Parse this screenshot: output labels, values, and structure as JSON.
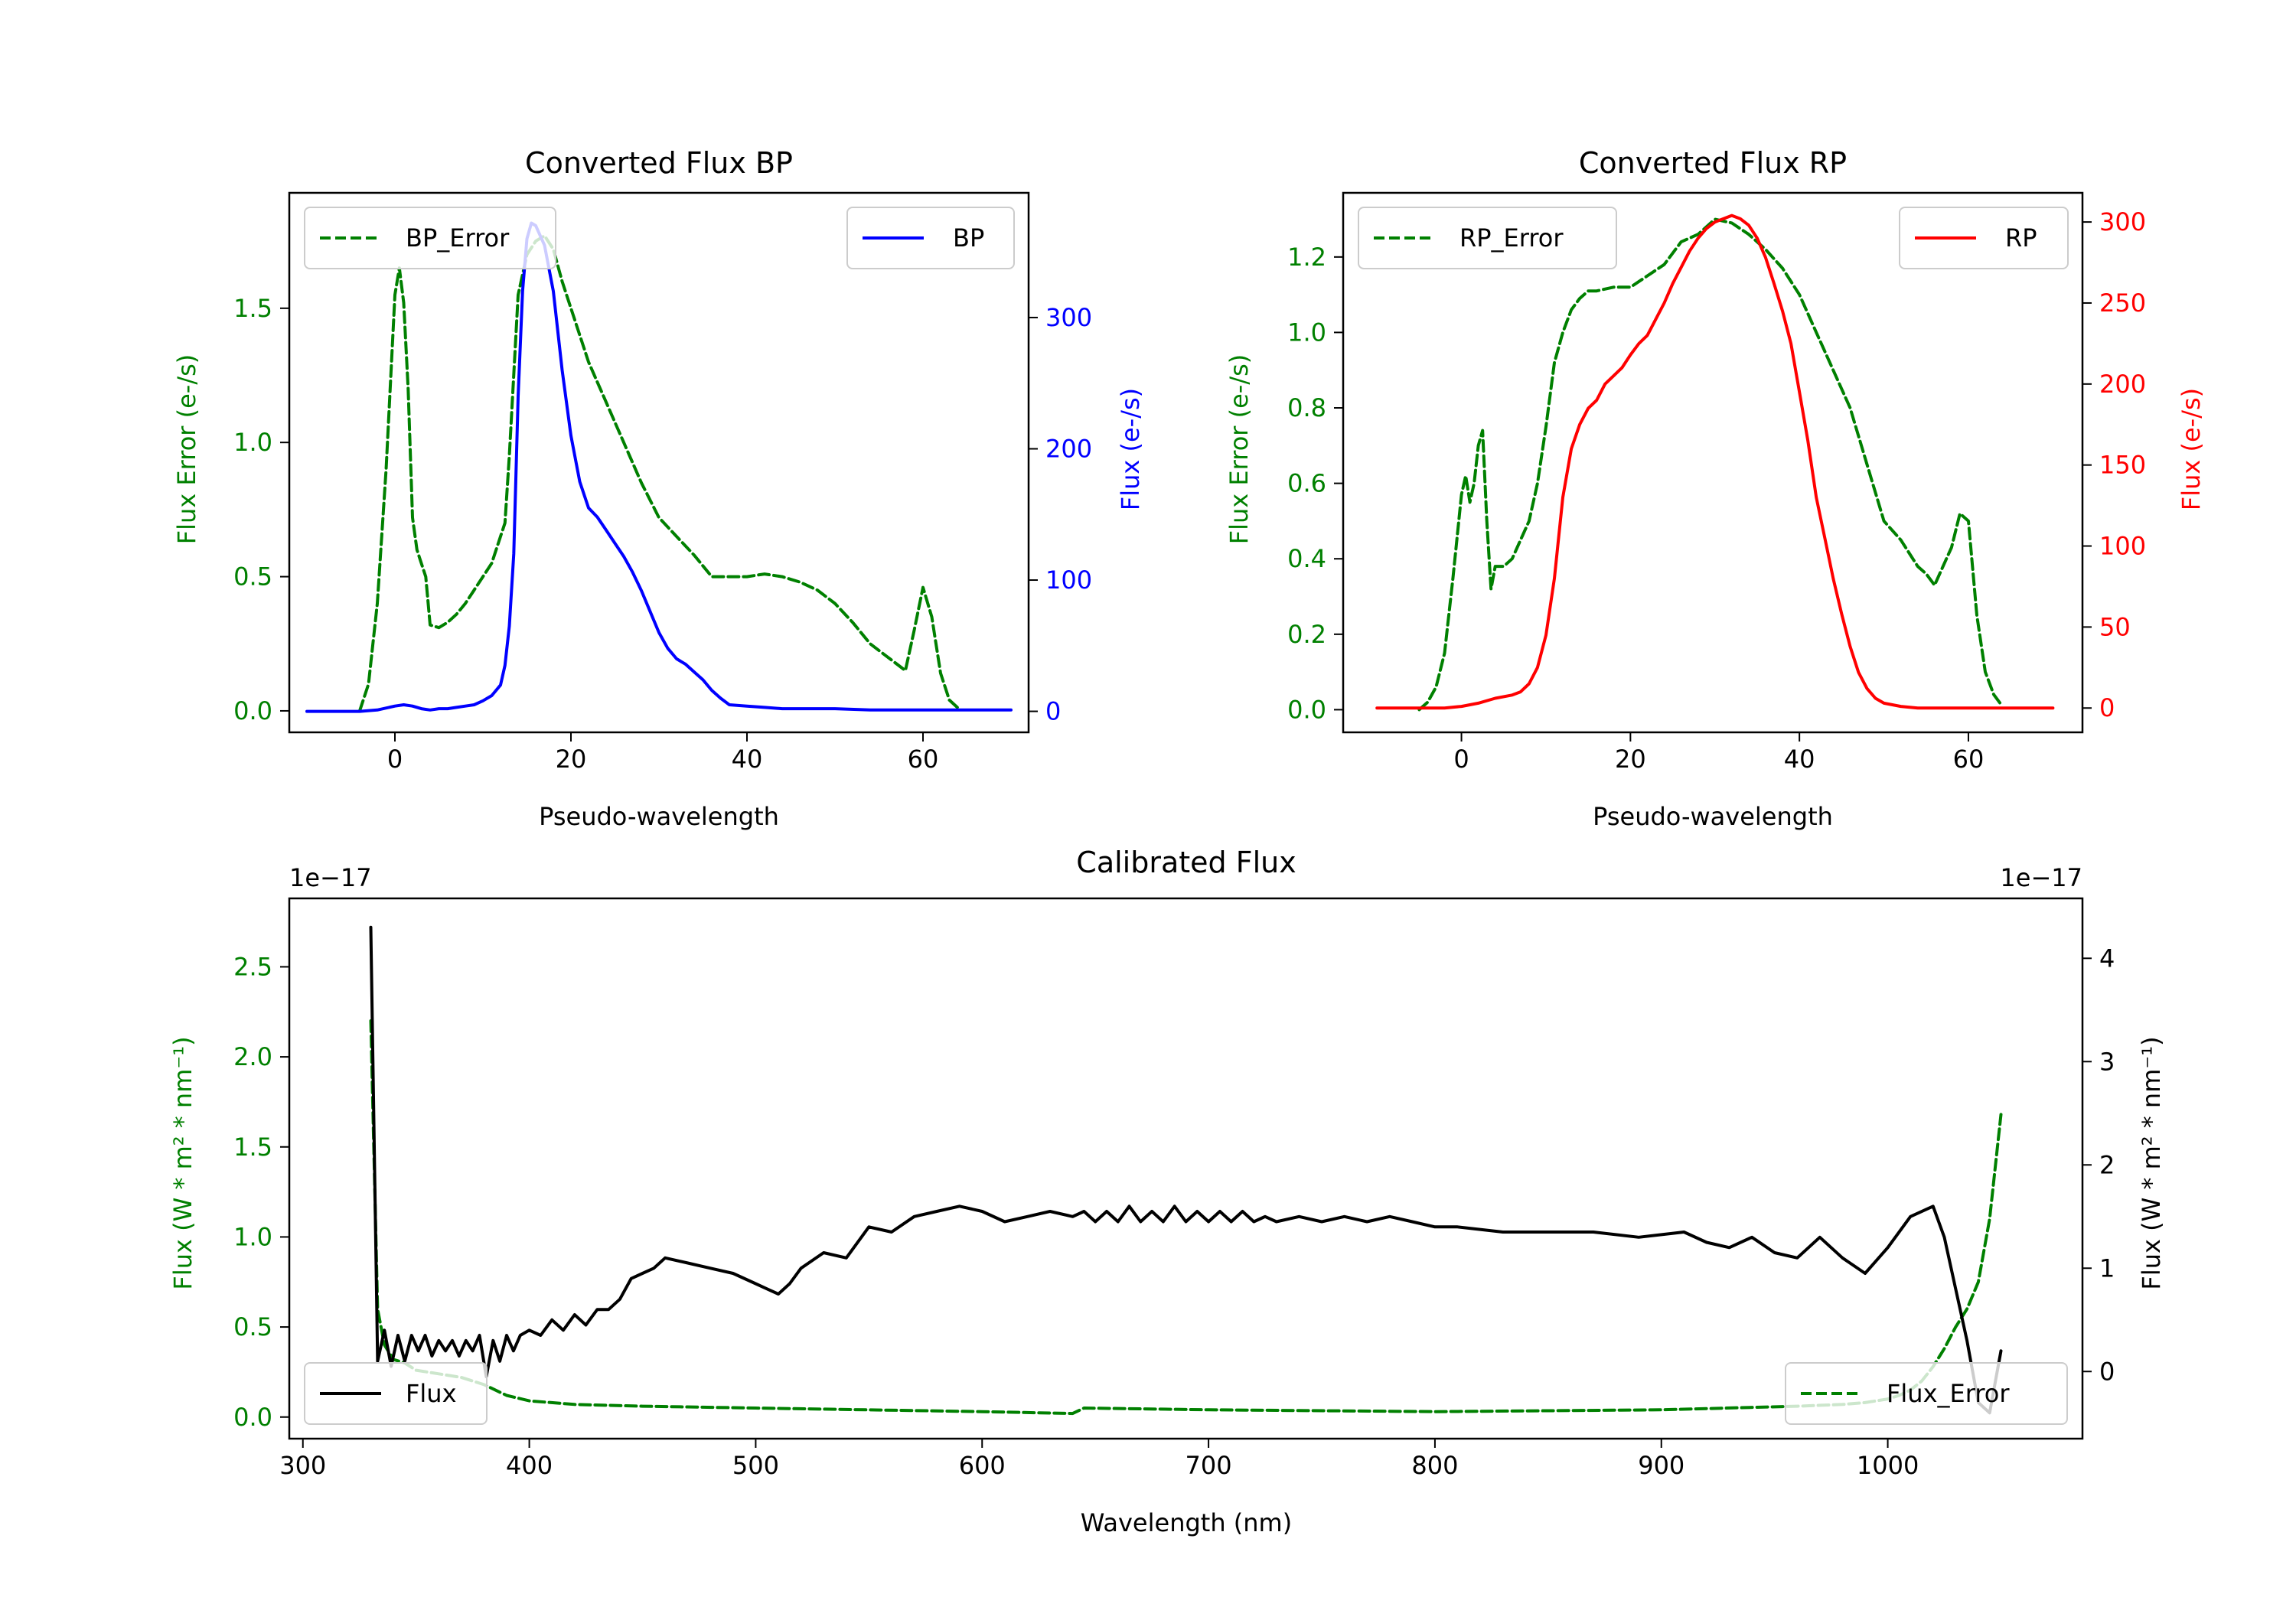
{
  "figure": {
    "colors": {
      "green": "#008000",
      "blue": "#0000ff",
      "red": "#ff0000",
      "black": "#000000"
    }
  },
  "chart_data": [
    {
      "id": "bp",
      "type": "line",
      "title": "Converted Flux BP",
      "xlabel": "Pseudo-wavelength",
      "ylabel_left": "Flux Error (e-/s)",
      "ylabel_right": "Flux (e-/s)",
      "xlim": [
        -12,
        72
      ],
      "ylim_left": [
        -0.08,
        1.93
      ],
      "ylim_right": [
        -16,
        395
      ],
      "x_ticks": [
        0,
        20,
        40,
        60
      ],
      "left_ticks": [
        "0.0",
        "0.5",
        "1.0",
        "1.5"
      ],
      "left_tick_values": [
        0,
        0.5,
        1.0,
        1.5
      ],
      "right_ticks": [
        "0",
        "100",
        "200",
        "300"
      ],
      "right_tick_values": [
        0,
        100,
        200,
        300
      ],
      "legend_left": "BP_Error",
      "legend_right": "BP",
      "right_axis_color": "#0000ff",
      "series": [
        {
          "name": "BP_Error",
          "axis": "left",
          "color": "#008000",
          "dashed": true,
          "x": [
            -4,
            -3,
            -2,
            -1,
            0,
            0.5,
            1,
            1.5,
            2,
            2.5,
            3,
            3.5,
            4,
            5,
            6,
            7,
            8,
            9,
            10,
            11,
            12,
            12.5,
            13,
            14,
            15,
            16,
            17,
            18,
            19,
            20,
            22,
            24,
            26,
            28,
            30,
            32,
            34,
            36,
            38,
            40,
            42,
            44,
            46,
            48,
            50,
            52,
            54,
            56,
            58,
            59,
            60,
            61,
            62,
            63,
            64
          ],
          "values": [
            0,
            0.1,
            0.4,
            0.9,
            1.55,
            1.65,
            1.52,
            1.2,
            0.72,
            0.6,
            0.55,
            0.5,
            0.32,
            0.31,
            0.33,
            0.36,
            0.4,
            0.45,
            0.5,
            0.55,
            0.65,
            0.7,
            0.95,
            1.55,
            1.7,
            1.75,
            1.77,
            1.72,
            1.6,
            1.5,
            1.3,
            1.15,
            1.0,
            0.85,
            0.72,
            0.65,
            0.58,
            0.5,
            0.5,
            0.5,
            0.51,
            0.5,
            0.48,
            0.45,
            0.4,
            0.33,
            0.25,
            0.2,
            0.15,
            0.3,
            0.46,
            0.35,
            0.14,
            0.04,
            0.01
          ]
        },
        {
          "name": "BP",
          "axis": "right",
          "color": "#0000ff",
          "dashed": false,
          "x": [
            -10,
            -6,
            -4,
            -2,
            0,
            1,
            2,
            3,
            4,
            5,
            6,
            7,
            8,
            9,
            10,
            11,
            12,
            12.5,
            13,
            13.5,
            14,
            14.5,
            15,
            15.5,
            16,
            17,
            18,
            19,
            20,
            21,
            22,
            23,
            24,
            25,
            26,
            27,
            28,
            29,
            30,
            31,
            32,
            33,
            34,
            35,
            36,
            37,
            38,
            40,
            42,
            44,
            46,
            48,
            50,
            54,
            58,
            62,
            66,
            70
          ],
          "values": [
            0,
            0,
            0,
            1,
            4,
            5,
            4,
            2,
            1,
            2,
            2,
            3,
            4,
            5,
            8,
            12,
            20,
            35,
            65,
            120,
            240,
            320,
            360,
            372,
            370,
            355,
            320,
            260,
            210,
            175,
            155,
            148,
            138,
            128,
            118,
            106,
            92,
            76,
            60,
            48,
            40,
            36,
            30,
            24,
            16,
            10,
            5,
            4,
            3,
            2,
            2,
            2,
            2,
            1,
            1,
            1,
            1,
            1
          ]
        }
      ]
    },
    {
      "id": "rp",
      "type": "line",
      "title": "Converted Flux RP",
      "xlabel": "Pseudo-wavelength",
      "ylabel_left": "Flux Error (e-/s)",
      "ylabel_right": "Flux (e-/s)",
      "xlim": [
        -14,
        73.5
      ],
      "ylim_left": [
        -0.06,
        1.37
      ],
      "ylim_right": [
        -15,
        318
      ],
      "x_ticks": [
        0,
        20,
        40,
        60
      ],
      "left_ticks": [
        "0.0",
        "0.2",
        "0.4",
        "0.6",
        "0.8",
        "1.0",
        "1.2"
      ],
      "left_tick_values": [
        0,
        0.2,
        0.4,
        0.6,
        0.8,
        1.0,
        1.2
      ],
      "right_ticks": [
        "0",
        "50",
        "100",
        "150",
        "200",
        "250",
        "300"
      ],
      "right_tick_values": [
        0,
        50,
        100,
        150,
        200,
        250,
        300
      ],
      "legend_left": "RP_Error",
      "legend_right": "RP",
      "right_axis_color": "#ff0000",
      "series": [
        {
          "name": "RP_Error",
          "axis": "left",
          "color": "#008000",
          "dashed": true,
          "x": [
            -5,
            -4,
            -3,
            -2,
            -1,
            0,
            0.5,
            1,
            1.5,
            2,
            2.5,
            3,
            3.5,
            4,
            5,
            6,
            7,
            8,
            9,
            10,
            11,
            12,
            13,
            14,
            15,
            16,
            18,
            20,
            22,
            24,
            26,
            28,
            30,
            32,
            34,
            36,
            38,
            40,
            42,
            44,
            46,
            48,
            50,
            52,
            54,
            55,
            56,
            57,
            58,
            59,
            60,
            61,
            62,
            63,
            64
          ],
          "values": [
            0,
            0.02,
            0.06,
            0.15,
            0.35,
            0.57,
            0.62,
            0.55,
            0.6,
            0.7,
            0.74,
            0.5,
            0.32,
            0.38,
            0.38,
            0.4,
            0.45,
            0.5,
            0.6,
            0.75,
            0.92,
            1.0,
            1.06,
            1.09,
            1.11,
            1.11,
            1.12,
            1.12,
            1.15,
            1.18,
            1.24,
            1.26,
            1.3,
            1.29,
            1.26,
            1.22,
            1.17,
            1.1,
            1.0,
            0.9,
            0.8,
            0.65,
            0.5,
            0.45,
            0.38,
            0.36,
            0.33,
            0.38,
            0.43,
            0.52,
            0.5,
            0.25,
            0.1,
            0.04,
            0.01
          ]
        },
        {
          "name": "RP",
          "axis": "right",
          "color": "#ff0000",
          "dashed": false,
          "x": [
            -10,
            -2,
            0,
            2,
            4,
            6,
            7,
            8,
            9,
            10,
            11,
            12,
            13,
            14,
            15,
            16,
            17,
            18,
            19,
            20,
            21,
            22,
            23,
            24,
            25,
            26,
            27,
            28,
            29,
            30,
            31,
            32,
            33,
            34,
            35,
            36,
            37,
            38,
            39,
            40,
            41,
            42,
            43,
            44,
            45,
            46,
            47,
            48,
            49,
            50,
            51,
            52,
            54,
            56,
            58,
            62,
            66,
            70
          ],
          "values": [
            0,
            0,
            1,
            3,
            6,
            8,
            10,
            15,
            25,
            45,
            80,
            130,
            160,
            175,
            185,
            190,
            200,
            205,
            210,
            218,
            225,
            230,
            240,
            250,
            262,
            272,
            282,
            290,
            296,
            300,
            302,
            304,
            302,
            298,
            290,
            278,
            262,
            245,
            225,
            195,
            165,
            130,
            105,
            80,
            58,
            38,
            22,
            12,
            6,
            3,
            2,
            1,
            0,
            0,
            0,
            0,
            0,
            0
          ]
        }
      ]
    },
    {
      "id": "cal",
      "type": "line",
      "title": "Calibrated Flux",
      "xlabel": "Wavelength (nm)",
      "ylabel_left": "Flux (W * m² * nm⁻¹)",
      "ylabel_right": "Flux (W * m² * nm⁻¹)",
      "offset_left": "1e−17",
      "offset_right": "1e−17",
      "xlim": [
        294,
        1086
      ],
      "ylim_left": [
        -0.12,
        2.88
      ],
      "ylim_right": [
        -0.65,
        4.58
      ],
      "x_ticks": [
        300,
        400,
        500,
        600,
        700,
        800,
        900,
        1000
      ],
      "left_ticks": [
        "0.0",
        "0.5",
        "1.0",
        "1.5",
        "2.0",
        "2.5"
      ],
      "left_tick_values": [
        0,
        0.5,
        1.0,
        1.5,
        2.0,
        2.5
      ],
      "right_ticks": [
        "0",
        "1",
        "2",
        "3",
        "4"
      ],
      "right_tick_values": [
        0,
        1,
        2,
        3,
        4
      ],
      "legend_left": "Flux",
      "legend_right": "Flux_Error",
      "right_axis_color": "#000000",
      "series": [
        {
          "name": "Flux_Error",
          "axis": "left",
          "color": "#008000",
          "dashed": true,
          "x": [
            330,
            333,
            336,
            340,
            345,
            350,
            360,
            370,
            380,
            390,
            400,
            420,
            450,
            500,
            600,
            640,
            645,
            700,
            800,
            900,
            960,
            980,
            990,
            1000,
            1005,
            1010,
            1015,
            1020,
            1025,
            1030,
            1035,
            1040,
            1045,
            1050
          ],
          "values": [
            2.2,
            0.6,
            0.4,
            0.32,
            0.3,
            0.26,
            0.24,
            0.22,
            0.18,
            0.12,
            0.09,
            0.07,
            0.06,
            0.05,
            0.03,
            0.02,
            0.05,
            0.04,
            0.03,
            0.04,
            0.06,
            0.07,
            0.08,
            0.1,
            0.12,
            0.15,
            0.2,
            0.28,
            0.38,
            0.5,
            0.6,
            0.75,
            1.1,
            1.68
          ]
        },
        {
          "name": "Flux",
          "axis": "right",
          "color": "#000000",
          "dashed": false,
          "x": [
            330,
            333,
            336,
            339,
            342,
            345,
            348,
            351,
            354,
            357,
            360,
            363,
            366,
            369,
            372,
            375,
            378,
            381,
            384,
            387,
            390,
            393,
            396,
            400,
            405,
            410,
            415,
            420,
            425,
            430,
            435,
            440,
            445,
            450,
            455,
            460,
            470,
            480,
            490,
            500,
            505,
            510,
            515,
            520,
            530,
            540,
            550,
            560,
            570,
            580,
            590,
            600,
            610,
            620,
            630,
            640,
            645,
            650,
            655,
            660,
            665,
            670,
            675,
            680,
            685,
            690,
            695,
            700,
            705,
            710,
            715,
            720,
            725,
            730,
            740,
            750,
            760,
            770,
            780,
            790,
            800,
            810,
            830,
            850,
            870,
            890,
            910,
            920,
            930,
            940,
            950,
            960,
            970,
            980,
            990,
            1000,
            1010,
            1020,
            1025,
            1030,
            1035,
            1040,
            1045,
            1050
          ],
          "values": [
            4.3,
            0.1,
            0.4,
            0.05,
            0.35,
            0.1,
            0.35,
            0.2,
            0.35,
            0.15,
            0.3,
            0.2,
            0.3,
            0.15,
            0.3,
            0.2,
            0.35,
            -0.05,
            0.3,
            0.1,
            0.35,
            0.2,
            0.35,
            0.4,
            0.35,
            0.5,
            0.4,
            0.55,
            0.45,
            0.6,
            0.6,
            0.7,
            0.9,
            0.95,
            1.0,
            1.1,
            1.05,
            1.0,
            0.95,
            0.85,
            0.8,
            0.75,
            0.85,
            1.0,
            1.15,
            1.1,
            1.4,
            1.35,
            1.5,
            1.55,
            1.6,
            1.55,
            1.45,
            1.5,
            1.55,
            1.5,
            1.55,
            1.45,
            1.55,
            1.45,
            1.6,
            1.45,
            1.55,
            1.45,
            1.6,
            1.45,
            1.55,
            1.45,
            1.55,
            1.45,
            1.55,
            1.45,
            1.5,
            1.45,
            1.5,
            1.45,
            1.5,
            1.45,
            1.5,
            1.45,
            1.4,
            1.4,
            1.35,
            1.35,
            1.35,
            1.3,
            1.35,
            1.25,
            1.2,
            1.3,
            1.15,
            1.1,
            1.3,
            1.1,
            0.95,
            1.2,
            1.5,
            1.6,
            1.3,
            0.8,
            0.3,
            -0.3,
            -0.4,
            0.2
          ]
        }
      ]
    }
  ]
}
